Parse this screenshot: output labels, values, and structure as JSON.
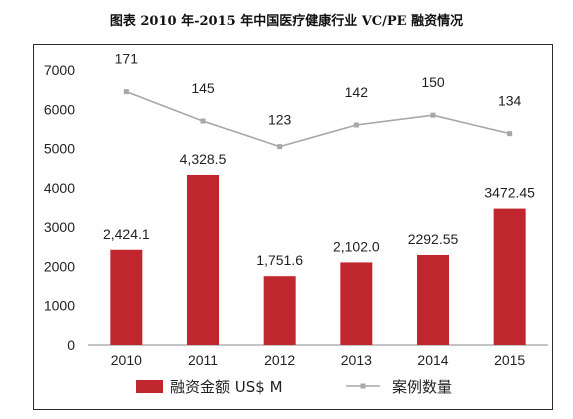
{
  "figure": {
    "title": "图表    2010 年-2015 年中国医疗健康行业 VC/PE 融资情况"
  },
  "chart_data": {
    "type": "bar+line",
    "categories": [
      "2010",
      "2011",
      "2012",
      "2013",
      "2014",
      "2015"
    ],
    "series": [
      {
        "name": "融资金额 US$ M",
        "type": "bar",
        "color": "#c0262d",
        "values": [
          2424.1,
          4328.5,
          1751.6,
          2102.0,
          2292.55,
          3472.45
        ],
        "labels": [
          "2,424.1",
          "4,328.5",
          "1,751.6",
          "2,102.0",
          "2292.55",
          "3472.45"
        ]
      },
      {
        "name": "案例数量",
        "type": "line",
        "color": "#a8a8a8",
        "values": [
          171,
          145,
          123,
          142,
          150,
          134
        ],
        "labels": [
          "171",
          "145",
          "123",
          "142",
          "150",
          "134"
        ],
        "plotted_on_left_axis": [
          6450,
          5700,
          5050,
          5600,
          5850,
          5380
        ]
      }
    ],
    "ylim": [
      0,
      7000
    ],
    "yticks": [
      "0",
      "1000",
      "2000",
      "3000",
      "4000",
      "5000",
      "6000",
      "7000"
    ],
    "ytick_values": [
      0,
      1000,
      2000,
      3000,
      4000,
      5000,
      6000,
      7000
    ],
    "grid": false,
    "legend_position": "bottom"
  }
}
